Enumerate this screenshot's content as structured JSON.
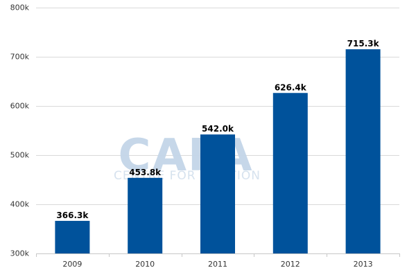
{
  "chart_data": {
    "type": "bar",
    "categories": [
      "2009",
      "2010",
      "2011",
      "2012",
      "2013"
    ],
    "values": [
      366.3,
      453.8,
      542.0,
      626.4,
      715.3
    ],
    "data_labels": [
      "366.3k",
      "453.8k",
      "542.0k",
      "626.4k",
      "715.3k"
    ],
    "ylim": [
      300,
      800
    ],
    "yticks": [
      300,
      400,
      500,
      600,
      700,
      800
    ],
    "ytick_labels": [
      "300k",
      "400k",
      "500k",
      "600k",
      "700k",
      "800k"
    ],
    "title": "",
    "xlabel": "",
    "ylabel": "",
    "grid": true,
    "bar_color": "#00529b"
  },
  "watermark": {
    "logo_text": "CAPA",
    "tagline": "CENTRE FOR AVIATION"
  }
}
